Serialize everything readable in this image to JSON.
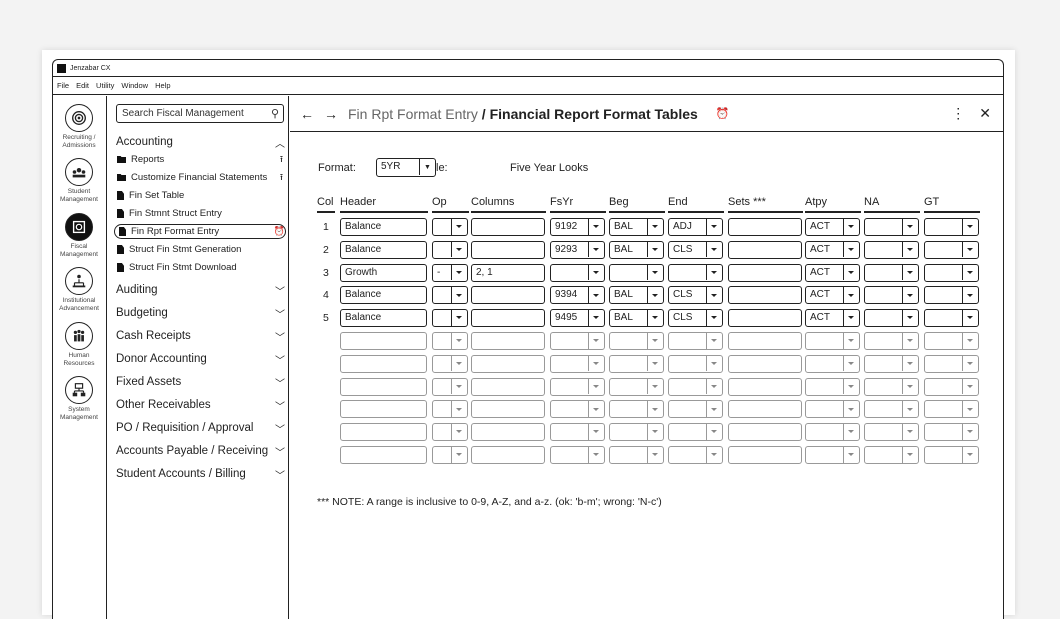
{
  "app": {
    "title": "Jenzabar CX"
  },
  "menu": [
    "File",
    "Edit",
    "Utility",
    "Window",
    "Help"
  ],
  "rail": [
    {
      "label": "Recruiting / Admissions",
      "icon": "target-icon",
      "active": false
    },
    {
      "label": "Student Management",
      "icon": "students-icon",
      "active": false
    },
    {
      "label": "Fiscal Management",
      "icon": "fiscal-icon",
      "active": true
    },
    {
      "label": "Institutional Advancement",
      "icon": "advancement-icon",
      "active": false
    },
    {
      "label": "Human Resources",
      "icon": "people-icon",
      "active": false
    },
    {
      "label": "System Management",
      "icon": "system-icon",
      "active": false
    }
  ],
  "search": {
    "placeholder": "Search Fiscal Management"
  },
  "nav": {
    "open_section": "Accounting",
    "items": [
      {
        "label": "Reports",
        "icon": "folder",
        "right": "⭱"
      },
      {
        "label": "Customize Financial Statements",
        "icon": "folder",
        "right": "⭱"
      },
      {
        "label": "Fin Set Table",
        "icon": "doc",
        "right": ""
      },
      {
        "label": "Fin Stmnt Struct Entry",
        "icon": "doc",
        "right": ""
      },
      {
        "label": "Fin Rpt Format Entry",
        "icon": "doc",
        "right": "⏰",
        "active": true
      },
      {
        "label": "Struct Fin Stmt Generation",
        "icon": "doc",
        "right": ""
      },
      {
        "label": "Struct Fin Stmt Download",
        "icon": "doc",
        "right": ""
      }
    ],
    "sections": [
      "Auditing",
      "Budgeting",
      "Cash Receipts",
      "Donor Accounting",
      "Fixed Assets",
      "Other Receivables",
      "PO / Requisition / Approval",
      "Accounts Payable / Receiving",
      "Student Accounts / Billing"
    ]
  },
  "header": {
    "crumb": "Fin Rpt Format Entry",
    "sep": " / ",
    "title": "Financial Report Format Tables"
  },
  "format": {
    "label": "Format:",
    "value": "5YR",
    "title_label": "le:",
    "title_value": "Five Year Looks"
  },
  "columns": [
    "Col",
    "Header",
    "Op",
    "Columns",
    "FsYr",
    "Beg",
    "End",
    "Sets ***",
    "Atpy",
    "NA",
    "GT"
  ],
  "rows": [
    {
      "col": "1",
      "header": "Balance",
      "op": "",
      "columns": "",
      "fsyr": "9192",
      "beg": "BAL",
      "end": "ADJ",
      "sets": "",
      "atpy": "ACT",
      "na": "",
      "gt": ""
    },
    {
      "col": "2",
      "header": "Balance",
      "op": "",
      "columns": "",
      "fsyr": "9293",
      "beg": "BAL",
      "end": "CLS",
      "sets": "",
      "atpy": "ACT",
      "na": "",
      "gt": ""
    },
    {
      "col": "3",
      "header": "Growth",
      "op": "-",
      "columns": "2, 1",
      "fsyr": "",
      "beg": "",
      "end": "",
      "sets": "",
      "atpy": "ACT",
      "na": "",
      "gt": ""
    },
    {
      "col": "4",
      "header": "Balance",
      "op": "",
      "columns": "",
      "fsyr": "9394",
      "beg": "BAL",
      "end": "CLS",
      "sets": "",
      "atpy": "ACT",
      "na": "",
      "gt": ""
    },
    {
      "col": "5",
      "header": "Balance",
      "op": "",
      "columns": "",
      "fsyr": "9495",
      "beg": "BAL",
      "end": "CLS",
      "sets": "",
      "atpy": "ACT",
      "na": "",
      "gt": ""
    },
    {
      "col": "",
      "header": "",
      "op": "",
      "columns": "",
      "fsyr": "",
      "beg": "",
      "end": "",
      "sets": "",
      "atpy": "",
      "na": "",
      "gt": ""
    },
    {
      "col": "",
      "header": "",
      "op": "",
      "columns": "",
      "fsyr": "",
      "beg": "",
      "end": "",
      "sets": "",
      "atpy": "",
      "na": "",
      "gt": ""
    },
    {
      "col": "",
      "header": "",
      "op": "",
      "columns": "",
      "fsyr": "",
      "beg": "",
      "end": "",
      "sets": "",
      "atpy": "",
      "na": "",
      "gt": ""
    },
    {
      "col": "",
      "header": "",
      "op": "",
      "columns": "",
      "fsyr": "",
      "beg": "",
      "end": "",
      "sets": "",
      "atpy": "",
      "na": "",
      "gt": ""
    },
    {
      "col": "",
      "header": "",
      "op": "",
      "columns": "",
      "fsyr": "",
      "beg": "",
      "end": "",
      "sets": "",
      "atpy": "",
      "na": "",
      "gt": ""
    },
    {
      "col": "",
      "header": "",
      "op": "",
      "columns": "",
      "fsyr": "",
      "beg": "",
      "end": "",
      "sets": "",
      "atpy": "",
      "na": "",
      "gt": ""
    }
  ],
  "note": "*** NOTE: A range is inclusive to 0-9, A-Z, and a-z. (ok: 'b-m'; wrong: 'N-c')"
}
